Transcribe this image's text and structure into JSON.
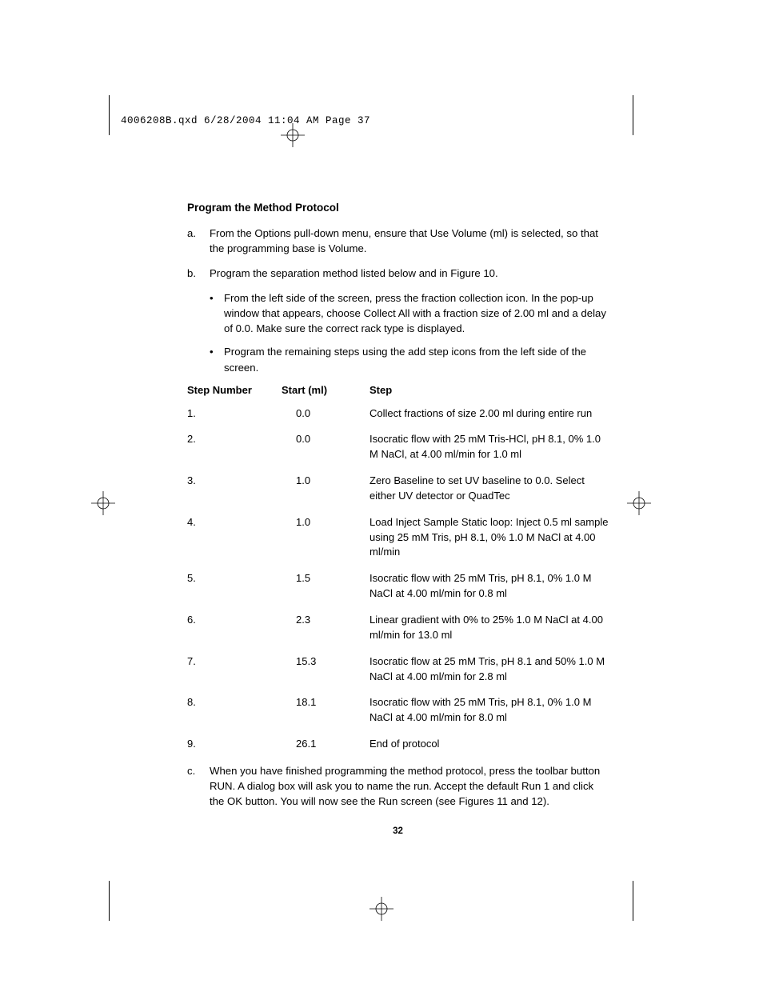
{
  "header": {
    "slug": "4006208B.qxd  6/28/2004  11:04 AM  Page 37"
  },
  "title": "Program the Method Protocol",
  "items": {
    "a": {
      "letter": "a.",
      "text": "From the Options pull-down menu, ensure that Use Volume (ml) is selected, so that the programming base is Volume."
    },
    "b": {
      "letter": "b.",
      "text": "Program the separation method listed below and in Figure 10.",
      "bullets": [
        "From the left side of the screen, press the fraction collection icon. In the pop-up window that appears, choose Collect All with a fraction size of 2.00 ml and a delay of 0.0. Make sure the correct rack type is displayed.",
        "Program the remaining steps using the add step icons from the left side of the screen."
      ]
    },
    "c": {
      "letter": "c.",
      "text": "When you have finished programming the method protocol, press the toolbar button RUN. A dialog box will ask you to name the run. Accept the default Run 1 and click the OK button. You will now see the Run screen (see Figures 11 and 12)."
    }
  },
  "table": {
    "headers": {
      "num": "Step Number",
      "start": "Start (ml)",
      "step": "Step"
    },
    "rows": [
      {
        "num": "1.",
        "start": "0.0",
        "step": "Collect fractions of size 2.00 ml during entire run"
      },
      {
        "num": "2.",
        "start": "0.0",
        "step": "Isocratic flow with 25 mM Tris-HCl, pH 8.1, 0% 1.0 M NaCl, at 4.00 ml/min for 1.0 ml"
      },
      {
        "num": "3.",
        "start": "1.0",
        "step": "Zero Baseline to set UV baseline to 0.0. Select either UV detector or QuadTec"
      },
      {
        "num": "4.",
        "start": "1.0",
        "step": "Load Inject Sample Static loop: Inject 0.5 ml sample using 25 mM Tris, pH 8.1, 0% 1.0 M NaCl at 4.00 ml/min"
      },
      {
        "num": "5.",
        "start": "1.5",
        "step": "Isocratic flow with 25 mM Tris, pH 8.1, 0% 1.0 M NaCl at 4.00 ml/min for 0.8 ml"
      },
      {
        "num": "6.",
        "start": "2.3",
        "step": "Linear gradient with 0% to 25% 1.0 M NaCl at 4.00 ml/min for 13.0 ml"
      },
      {
        "num": "7.",
        "start": "15.3",
        "step": "Isocratic flow at 25 mM Tris, pH 8.1 and 50% 1.0 M NaCl at 4.00 ml/min for 2.8 ml"
      },
      {
        "num": "8.",
        "start": "18.1",
        "step": "Isocratic flow with 25 mM Tris, pH 8.1, 0% 1.0 M NaCl at 4.00 ml/min for 8.0 ml"
      },
      {
        "num": "9.",
        "start": "26.1",
        "step": "End of protocol"
      }
    ]
  },
  "pageNumber": "32"
}
